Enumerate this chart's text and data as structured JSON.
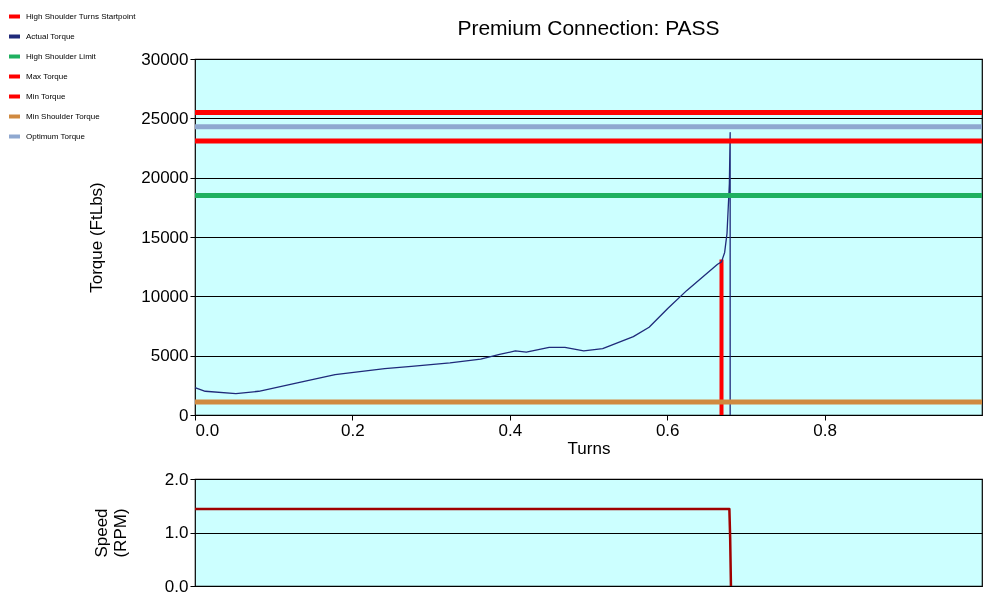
{
  "chart_data": [
    {
      "type": "line",
      "title": "Premium Connection: PASS",
      "xlabel": "Turns",
      "ylabel": "Torque (FtLbs)",
      "xlim": [
        0,
        1
      ],
      "xticks": [
        {
          "value": 0,
          "label": "0.0"
        },
        0.2,
        0.4,
        0.6,
        0.8
      ],
      "ylim": [
        0,
        30000
      ],
      "yticks": [
        0,
        5000,
        10000,
        15000,
        20000,
        25000,
        30000
      ],
      "grid": "y",
      "legend": "top left",
      "series": [
        {
          "name": "High Shoulder Turns Startpoint",
          "color": "#ff0000",
          "x": [
            0.669,
            0.669
          ],
          "values": [
            0,
            13100
          ]
        },
        {
          "name": "Actual Torque",
          "color": "#1f2a7a",
          "x": [
            0,
            0.013,
            0.052,
            0.081,
            0.13,
            0.178,
            0.241,
            0.275,
            0.324,
            0.363,
            0.387,
            0.407,
            0.421,
            0.45,
            0.47,
            0.494,
            0.518,
            0.557,
            0.577,
            0.601,
            0.625,
            0.664,
            0.669,
            0.673,
            0.676,
            0.679,
            0.68,
            0.68
          ],
          "values": [
            2300,
            2000,
            1800,
            2000,
            2700,
            3400,
            3900,
            4100,
            4400,
            4700,
            5100,
            5400,
            5300,
            5700,
            5700,
            5400,
            5600,
            6600,
            7400,
            9000,
            10500,
            12700,
            12900,
            13700,
            15300,
            19500,
            23800,
            0
          ]
        }
      ],
      "ref_lines": [
        {
          "axis": "y",
          "value": 18500,
          "label": "High Shoulder Limit",
          "color": "#1fb060"
        },
        {
          "axis": "y",
          "value": 25500,
          "label": "Max Torque",
          "color": "#ff0000"
        },
        {
          "axis": "y",
          "value": 23100,
          "label": "Min Torque",
          "color": "#ff0000"
        },
        {
          "axis": "y",
          "value": 1100,
          "label": "Min Shoulder Torque",
          "color": "#d08a40"
        },
        {
          "axis": "y",
          "value": 24300,
          "label": "Optimum Torque",
          "color": "#8fa8d0"
        }
      ]
    },
    {
      "type": "line",
      "ylabel": "Speed (RPM)",
      "xlim": [
        0,
        1
      ],
      "ylim": [
        0,
        2
      ],
      "yticks": [
        {
          "value": 0,
          "label": "0.0"
        },
        {
          "value": 1,
          "label": "1.0"
        },
        {
          "value": 2,
          "label": "2.0"
        }
      ],
      "tick_labels": "y",
      "grid": "y",
      "series": [
        {
          "color": "#a00000",
          "x": [
            0,
            0.679,
            0.68,
            0.681
          ],
          "values": [
            1.44,
            1.44,
            0.9,
            0
          ]
        }
      ]
    }
  ]
}
